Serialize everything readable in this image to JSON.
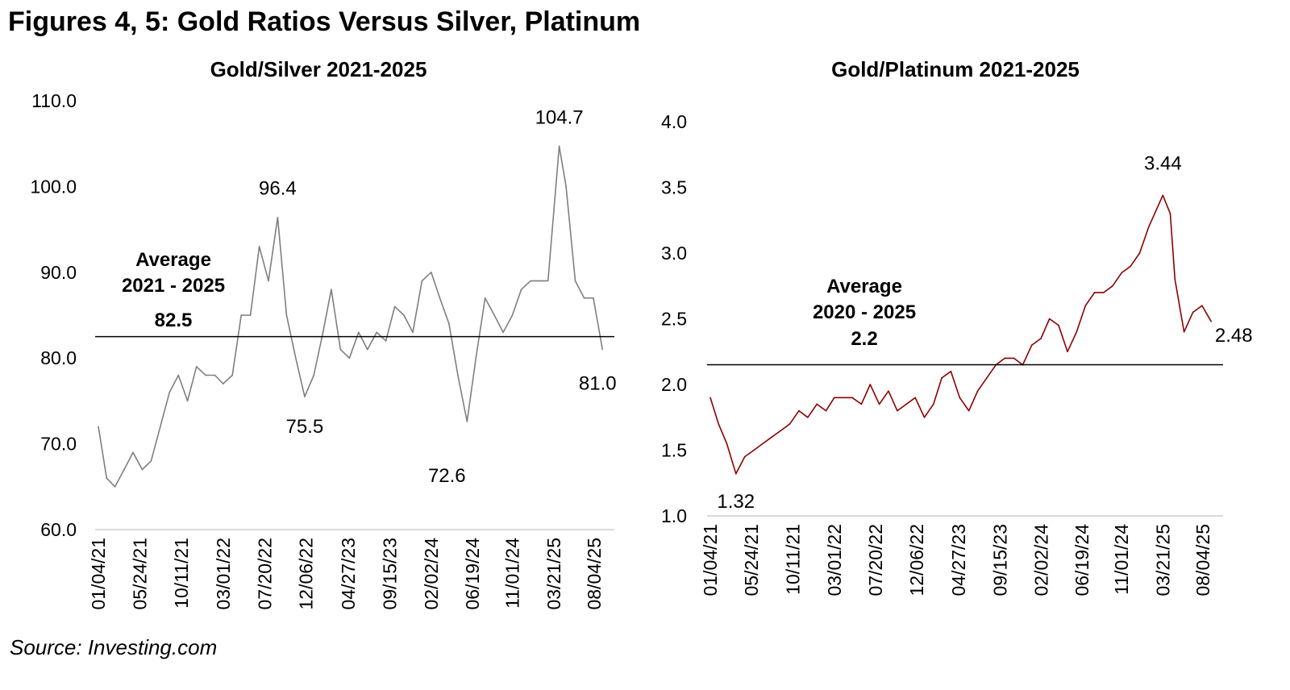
{
  "figure_title": "Figures 4, 5: Gold Ratios Versus Silver, Platinum",
  "source": "Source: Investing.com",
  "chart_data": [
    {
      "type": "line",
      "title": "Gold/Silver 2021-2025",
      "color": "#7f7f7f",
      "ylim": [
        60,
        110
      ],
      "yticks": [
        "60.0",
        "70.0",
        "80.0",
        "90.0",
        "100.0",
        "110.0"
      ],
      "xticks": [
        "01/04/21",
        "05/24/21",
        "10/11/21",
        "03/01/22",
        "07/20/22",
        "12/06/22",
        "04/27/23",
        "09/15/23",
        "02/02/24",
        "06/19/24",
        "11/01/24",
        "03/21/25",
        "08/04/25"
      ],
      "x": [
        "2021-01-04",
        "2021-02-01",
        "2021-03-01",
        "2021-04-01",
        "2021-05-01",
        "2021-06-01",
        "2021-07-01",
        "2021-08-01",
        "2021-09-01",
        "2021-10-01",
        "2021-11-01",
        "2021-12-01",
        "2022-01-01",
        "2022-02-01",
        "2022-03-01",
        "2022-04-01",
        "2022-05-01",
        "2022-06-01",
        "2022-07-01",
        "2022-08-01",
        "2022-09-01",
        "2022-10-01",
        "2022-11-01",
        "2022-12-01",
        "2023-01-01",
        "2023-02-01",
        "2023-03-01",
        "2023-04-01",
        "2023-05-01",
        "2023-06-01",
        "2023-07-01",
        "2023-08-01",
        "2023-09-01",
        "2023-10-01",
        "2023-11-01",
        "2023-12-01",
        "2024-01-01",
        "2024-02-01",
        "2024-03-01",
        "2024-04-01",
        "2024-05-01",
        "2024-06-01",
        "2024-07-01",
        "2024-08-01",
        "2024-09-01",
        "2024-10-01",
        "2024-11-01",
        "2024-12-01",
        "2025-01-01",
        "2025-02-01",
        "2025-03-01",
        "2025-04-08",
        "2025-05-01",
        "2025-06-01",
        "2025-07-01",
        "2025-08-01",
        "2025-09-01"
      ],
      "values": [
        72,
        66,
        65,
        67,
        69,
        67,
        68,
        72,
        76,
        78,
        75,
        79,
        78,
        78,
        77,
        78,
        85,
        85,
        93,
        89,
        96.4,
        85,
        80,
        75.5,
        78,
        83,
        88,
        81,
        80,
        83,
        81,
        83,
        82,
        86,
        85,
        83,
        89,
        90,
        87,
        84,
        78,
        72.6,
        80,
        87,
        85,
        83,
        85,
        88,
        89,
        89,
        89,
        104.7,
        100,
        89,
        87,
        87,
        81.0
      ],
      "average": {
        "label": [
          "Average",
          "2021 - 2025",
          "82.5"
        ],
        "value": 82.5
      },
      "annotations": [
        {
          "text": "96.4",
          "x": "2022-09-01",
          "y": 96.4
        },
        {
          "text": "104.7",
          "x": "2025-04-08",
          "y": 104.7
        },
        {
          "text": "75.5",
          "x": "2022-12-01",
          "y": 75.5
        },
        {
          "text": "72.6",
          "x": "2024-06-01",
          "y": 72.6
        },
        {
          "text": "81.0",
          "x": "2025-09-01",
          "y": 81.0
        }
      ]
    },
    {
      "type": "line",
      "title": "Gold/Platinum 2021-2025",
      "color": "#8b0000",
      "ylim": [
        1.0,
        4.0
      ],
      "yticks": [
        "1.0",
        "1.5",
        "2.0",
        "2.5",
        "3.0",
        "3.5",
        "4.0"
      ],
      "xticks": [
        "01/04/21",
        "05/24/21",
        "10/11/21",
        "03/01/22",
        "07/20/22",
        "12/06/22",
        "04/27/23",
        "09/15/23",
        "02/02/24",
        "06/19/24",
        "11/01/24",
        "03/21/25",
        "08/04/25"
      ],
      "x": [
        "2021-01-04",
        "2021-02-01",
        "2021-03-01",
        "2021-04-01",
        "2021-05-01",
        "2021-06-01",
        "2021-07-01",
        "2021-08-01",
        "2021-09-01",
        "2021-10-01",
        "2021-11-01",
        "2021-12-01",
        "2022-01-01",
        "2022-02-01",
        "2022-03-01",
        "2022-04-01",
        "2022-05-01",
        "2022-06-01",
        "2022-07-01",
        "2022-08-01",
        "2022-09-01",
        "2022-10-01",
        "2022-11-01",
        "2022-12-01",
        "2023-01-01",
        "2023-02-01",
        "2023-03-01",
        "2023-04-01",
        "2023-05-01",
        "2023-06-01",
        "2023-07-01",
        "2023-08-01",
        "2023-09-01",
        "2023-10-01",
        "2023-11-01",
        "2023-12-01",
        "2024-01-01",
        "2024-02-01",
        "2024-03-01",
        "2024-04-01",
        "2024-05-01",
        "2024-06-01",
        "2024-07-01",
        "2024-08-01",
        "2024-09-01",
        "2024-10-01",
        "2024-11-01",
        "2024-12-01",
        "2025-01-01",
        "2025-02-01",
        "2025-03-21",
        "2025-04-15",
        "2025-05-01",
        "2025-06-01",
        "2025-07-01",
        "2025-08-01",
        "2025-09-01"
      ],
      "values": [
        1.9,
        1.7,
        1.55,
        1.32,
        1.45,
        1.5,
        1.55,
        1.6,
        1.65,
        1.7,
        1.8,
        1.75,
        1.85,
        1.8,
        1.9,
        1.9,
        1.9,
        1.85,
        2.0,
        1.85,
        1.95,
        1.8,
        1.85,
        1.9,
        1.75,
        1.85,
        2.05,
        2.1,
        1.9,
        1.8,
        1.95,
        2.05,
        2.15,
        2.2,
        2.2,
        2.15,
        2.3,
        2.35,
        2.5,
        2.45,
        2.25,
        2.4,
        2.6,
        2.7,
        2.7,
        2.75,
        2.85,
        2.9,
        3.0,
        3.2,
        3.44,
        3.3,
        2.8,
        2.4,
        2.55,
        2.6,
        2.48
      ],
      "average": {
        "label": [
          "Average",
          "2020 - 2025",
          "2.2"
        ],
        "value": 2.15
      },
      "annotations": [
        {
          "text": "1.32",
          "x": "2021-04-01",
          "y": 1.32
        },
        {
          "text": "3.44",
          "x": "2025-03-21",
          "y": 3.44
        },
        {
          "text": "2.48",
          "x": "2025-09-01",
          "y": 2.48
        }
      ]
    }
  ]
}
